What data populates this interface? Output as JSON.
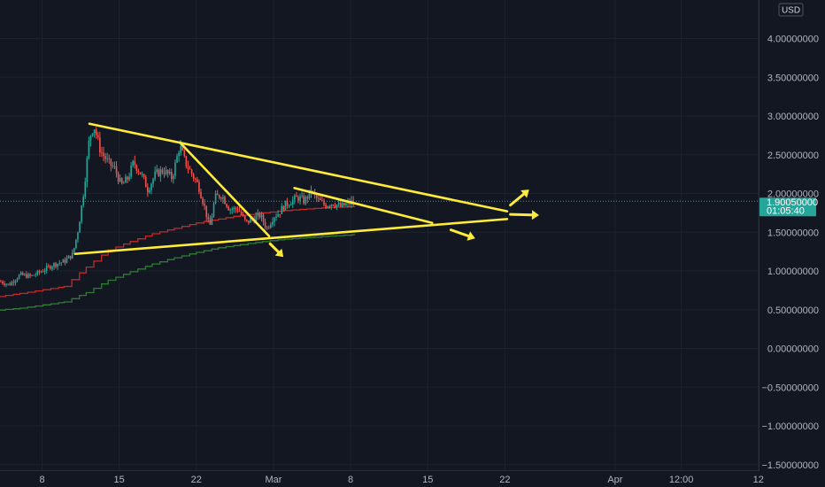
{
  "chart_data": {
    "type": "candlestick",
    "currency": "USD",
    "y_ticks": [
      "4.00000000",
      "3.50000000",
      "3.00000000",
      "2.50000000",
      "2.00000000",
      "1.50000000",
      "1.00000000",
      "0.50000000",
      "0.00000000",
      "−0.50000000",
      "−1.00000000",
      "−1.50000000"
    ],
    "y_tick_values": [
      4.0,
      3.5,
      3.0,
      2.5,
      2.0,
      1.5,
      1.0,
      0.5,
      0.0,
      -0.5,
      -1.0,
      -1.5
    ],
    "ylim": [
      -1.5,
      4.0
    ],
    "x_ticks": [
      {
        "label": "8",
        "day": 8
      },
      {
        "label": "15",
        "day": 15
      },
      {
        "label": "22",
        "day": 22
      },
      {
        "label": "Mar",
        "day": 29
      },
      {
        "label": "8",
        "day": 36
      },
      {
        "label": "15",
        "day": 43
      },
      {
        "label": "22",
        "day": 50
      },
      {
        "label": "Apr",
        "day": 60
      },
      {
        "label": "12:00",
        "day": 66
      },
      {
        "label": "12",
        "day": 73
      }
    ],
    "current_price": {
      "price": "1.90050000",
      "value": 1.9005,
      "countdown": "01:05:40"
    },
    "price_path": [
      [
        1.5,
        0.8
      ],
      [
        3,
        0.85
      ],
      [
        4,
        0.88
      ],
      [
        5,
        0.82
      ],
      [
        6,
        0.95
      ],
      [
        7,
        0.93
      ],
      [
        8,
        1.0
      ],
      [
        9,
        1.08
      ],
      [
        10,
        1.12
      ],
      [
        10.8,
        1.22
      ],
      [
        11.3,
        1.55
      ],
      [
        11.8,
        2.05
      ],
      [
        12.3,
        2.72
      ],
      [
        12.7,
        2.88
      ],
      [
        13.3,
        2.55
      ],
      [
        14,
        2.4
      ],
      [
        14.6,
        2.32
      ],
      [
        15.2,
        2.1
      ],
      [
        15.8,
        2.2
      ],
      [
        16.3,
        2.4
      ],
      [
        17,
        2.25
      ],
      [
        17.6,
        2.05
      ],
      [
        18.3,
        2.25
      ],
      [
        19,
        2.3
      ],
      [
        19.8,
        2.2
      ],
      [
        20.5,
        2.62
      ],
      [
        21,
        2.4
      ],
      [
        21.6,
        2.25
      ],
      [
        22.2,
        2.1
      ],
      [
        22.8,
        1.8
      ],
      [
        23.2,
        1.55
      ],
      [
        23.7,
        1.95
      ],
      [
        24.3,
        1.98
      ],
      [
        25,
        1.8
      ],
      [
        25.8,
        1.8
      ],
      [
        26.5,
        1.62
      ],
      [
        27.2,
        1.68
      ],
      [
        27.8,
        1.72
      ],
      [
        28.4,
        1.55
      ],
      [
        29,
        1.7
      ],
      [
        29.5,
        1.75
      ],
      [
        30,
        1.85
      ],
      [
        30.6,
        1.9
      ],
      [
        31.2,
        1.95
      ],
      [
        31.8,
        1.9
      ],
      [
        32.4,
        2.03
      ],
      [
        33,
        1.92
      ],
      [
        33.7,
        1.85
      ],
      [
        34.4,
        1.88
      ],
      [
        35.1,
        1.83
      ],
      [
        35.8,
        1.87
      ],
      [
        36.4,
        1.9
      ]
    ],
    "series": [
      {
        "name": "",
        "color": "#c62828",
        "points": [
          [
            0.5,
            0.6
          ],
          [
            6,
            0.71
          ],
          [
            10,
            0.8
          ],
          [
            12,
            1.05
          ],
          [
            14,
            1.27
          ],
          [
            16,
            1.38
          ],
          [
            18,
            1.48
          ],
          [
            20,
            1.55
          ],
          [
            22,
            1.62
          ],
          [
            24,
            1.67
          ],
          [
            26,
            1.72
          ],
          [
            28,
            1.75
          ],
          [
            30,
            1.78
          ],
          [
            32,
            1.8
          ],
          [
            34,
            1.82
          ],
          [
            36.4,
            1.83
          ]
        ]
      },
      {
        "name": "",
        "color": "#2e7d32",
        "points": [
          [
            0.5,
            0.45
          ],
          [
            6,
            0.52
          ],
          [
            10,
            0.6
          ],
          [
            12,
            0.72
          ],
          [
            14,
            0.88
          ],
          [
            16,
            0.99
          ],
          [
            18,
            1.09
          ],
          [
            20,
            1.17
          ],
          [
            22,
            1.24
          ],
          [
            24,
            1.3
          ],
          [
            26,
            1.34
          ],
          [
            28,
            1.38
          ],
          [
            30,
            1.41
          ],
          [
            32,
            1.43
          ],
          [
            34,
            1.45
          ],
          [
            36.4,
            1.47
          ]
        ]
      }
    ],
    "trendlines": [
      {
        "color": "#ffeb3b",
        "points": [
          [
            12.3,
            2.9
          ],
          [
            50.2,
            1.77
          ]
        ]
      },
      {
        "color": "#ffeb3b",
        "points": [
          [
            11,
            1.22
          ],
          [
            50.2,
            1.67
          ]
        ]
      },
      {
        "color": "#ffeb3b",
        "points": [
          [
            20.5,
            2.66
          ],
          [
            28.6,
            1.45
          ]
        ]
      },
      {
        "color": "#ffeb3b",
        "points": [
          [
            30.9,
            2.07
          ],
          [
            43.4,
            1.62
          ]
        ]
      }
    ],
    "arrows": [
      {
        "color": "#ffeb3b",
        "from": [
          50.5,
          1.85
        ],
        "to": [
          52.2,
          2.05
        ]
      },
      {
        "color": "#ffeb3b",
        "from": [
          50.5,
          1.73
        ],
        "to": [
          53.1,
          1.72
        ]
      },
      {
        "color": "#ffeb3b",
        "from": [
          45.1,
          1.53
        ],
        "to": [
          47.3,
          1.42
        ]
      },
      {
        "color": "#ffeb3b",
        "from": [
          28.7,
          1.35
        ],
        "to": [
          29.9,
          1.18
        ]
      }
    ],
    "grid": true
  }
}
